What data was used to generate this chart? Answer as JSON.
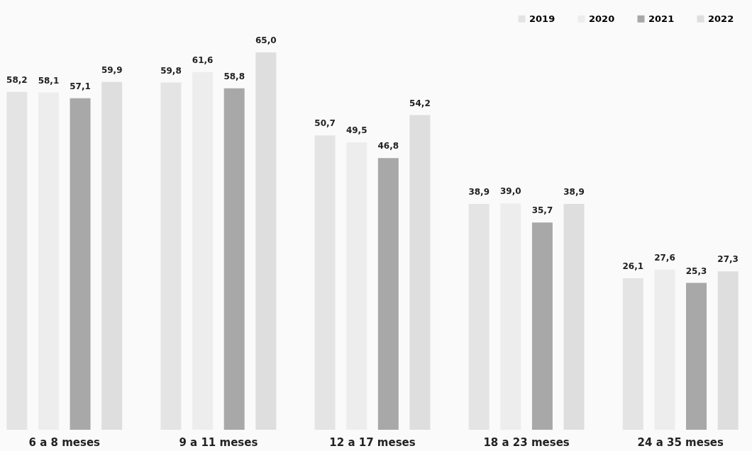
{
  "chart_data": {
    "type": "bar",
    "categories": [
      "6 a 8 meses",
      "9 a 11 meses",
      "12 a 17 meses",
      "18 a 23 meses",
      "24 a 35 meses"
    ],
    "series": [
      {
        "name": "2019",
        "color": "#e4e4e4",
        "values": [
          58.2,
          59.8,
          50.7,
          38.9,
          26.1
        ],
        "value_labels": [
          "58,2",
          "59,8",
          "50,7",
          "38,9",
          "26,1"
        ]
      },
      {
        "name": "2020",
        "color": "#ededed",
        "values": [
          58.1,
          61.6,
          49.5,
          39.0,
          27.6
        ],
        "value_labels": [
          "58,1",
          "61,6",
          "49,5",
          "39,0",
          "27,6"
        ]
      },
      {
        "name": "2021",
        "color": "#a8a8a8",
        "values": [
          57.1,
          58.8,
          46.8,
          35.7,
          25.3
        ],
        "value_labels": [
          "57,1",
          "58,8",
          "46,8",
          "35,7",
          "25,3"
        ]
      },
      {
        "name": "2022",
        "color": "#dedede",
        "values": [
          59.9,
          65.0,
          54.2,
          38.9,
          27.3
        ],
        "value_labels": [
          "59,9",
          "65,0",
          "54,2",
          "38,9",
          "27,3"
        ]
      }
    ],
    "legend": "top right",
    "grid": false,
    "tick_labels": "x"
  }
}
